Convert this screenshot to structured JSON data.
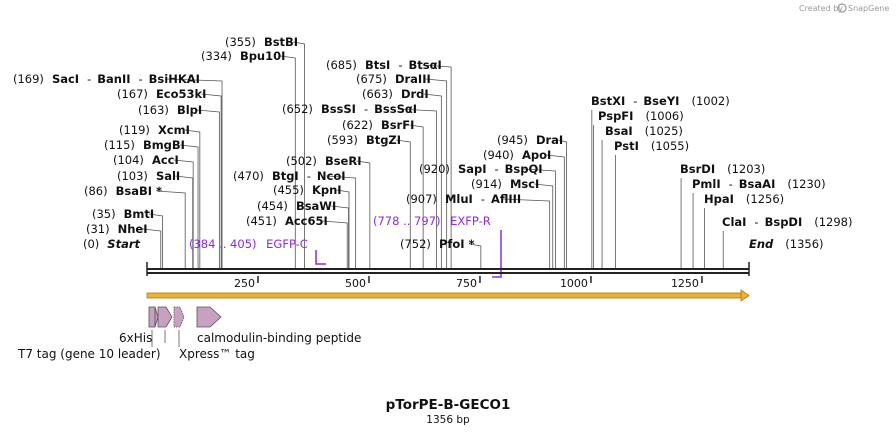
{
  "watermark": {
    "text": "Created by",
    "brand": "SnapGene"
  },
  "map": {
    "name": "pTorPE-B-GECO1",
    "length_label": "1356 bp",
    "length": 1356,
    "backbone_color": "#222222",
    "orf_color": "#f0b030",
    "feature_color": "#c8a0c0",
    "primer_color": "#8a2be2"
  },
  "ticks": [
    {
      "label": "250"
    },
    {
      "label": "500"
    },
    {
      "label": "750"
    },
    {
      "label": "1000"
    },
    {
      "label": "1250"
    }
  ],
  "sites": [
    {
      "pos": "(0)",
      "name": "Start",
      "italic": true
    },
    {
      "pos": "(31)",
      "name": "NheI"
    },
    {
      "pos": "(35)",
      "name": "BmtI"
    },
    {
      "pos": "(86)",
      "name": "BsaBI *"
    },
    {
      "pos": "(103)",
      "name": "SalI"
    },
    {
      "pos": "(104)",
      "name": "AccI"
    },
    {
      "pos": "(115)",
      "name": "BmgBI"
    },
    {
      "pos": "(119)",
      "name": "XcmI"
    },
    {
      "pos": "(163)",
      "name": "BlpI"
    },
    {
      "pos": "(167)",
      "name": "Eco53kI"
    },
    {
      "pos": "(169)",
      "name": "SacI",
      "extra": [
        "BanII",
        "BsiHKAI"
      ]
    },
    {
      "pos": "(334)",
      "name": "Bpu10I"
    },
    {
      "pos": "(355)",
      "name": "BstBI"
    },
    {
      "pos": "(451)",
      "name": "Acc65I"
    },
    {
      "pos": "(454)",
      "name": "BsaWI"
    },
    {
      "pos": "(455)",
      "name": "KpnI"
    },
    {
      "pos": "(470)",
      "name": "BtgI",
      "extra": [
        "NcoI"
      ]
    },
    {
      "pos": "(502)",
      "name": "BseRI"
    },
    {
      "pos": "(593)",
      "name": "BtgZI"
    },
    {
      "pos": "(622)",
      "name": "BsrFI"
    },
    {
      "pos": "(652)",
      "name": "BssSI",
      "extra": [
        "BssSαI"
      ]
    },
    {
      "pos": "(663)",
      "name": "DrdI"
    },
    {
      "pos": "(675)",
      "name": "DraIII"
    },
    {
      "pos": "(685)",
      "name": "BtsI",
      "extra": [
        "BtsαI"
      ]
    },
    {
      "pos": "(752)",
      "name": "PfoI *"
    },
    {
      "pos": "(907)",
      "name": "MluI",
      "extra": [
        "AflIII"
      ]
    },
    {
      "pos": "(914)",
      "name": "MscI"
    },
    {
      "pos": "(920)",
      "name": "SapI",
      "extra": [
        "BspQI"
      ]
    },
    {
      "pos": "(940)",
      "name": "ApoI"
    },
    {
      "pos": "(945)",
      "name": "DraI"
    },
    {
      "pos": "(1002)",
      "name": "BstXI",
      "extra": [
        "BseYI"
      ],
      "pos_after": true
    },
    {
      "pos": "(1006)",
      "name": "PspFI",
      "pos_after": true
    },
    {
      "pos": "(1025)",
      "name": "BsaI",
      "pos_after": true
    },
    {
      "pos": "(1055)",
      "name": "PstI",
      "pos_after": true
    },
    {
      "pos": "(1203)",
      "name": "BsrDI",
      "pos_after": true
    },
    {
      "pos": "(1230)",
      "name": "PmlI",
      "extra": [
        "BsaAI"
      ],
      "pos_after": true
    },
    {
      "pos": "(1256)",
      "name": "HpaI",
      "pos_after": true
    },
    {
      "pos": "(1298)",
      "name": "ClaI",
      "extra": [
        "BspDI"
      ],
      "pos_after": true
    },
    {
      "pos": "(1356)",
      "name": "End",
      "italic": true,
      "pos_after": true
    }
  ],
  "primers": [
    {
      "range": "(384 .. 405)",
      "name": "EGFP-C"
    },
    {
      "range": "(778 .. 797)",
      "name": "EXFP-R"
    }
  ],
  "features": [
    {
      "name": "6xHis"
    },
    {
      "name": "T7 tag (gene 10 leader)"
    },
    {
      "name": "Xpress™ tag"
    },
    {
      "name": "calmodulin-binding peptide"
    }
  ]
}
